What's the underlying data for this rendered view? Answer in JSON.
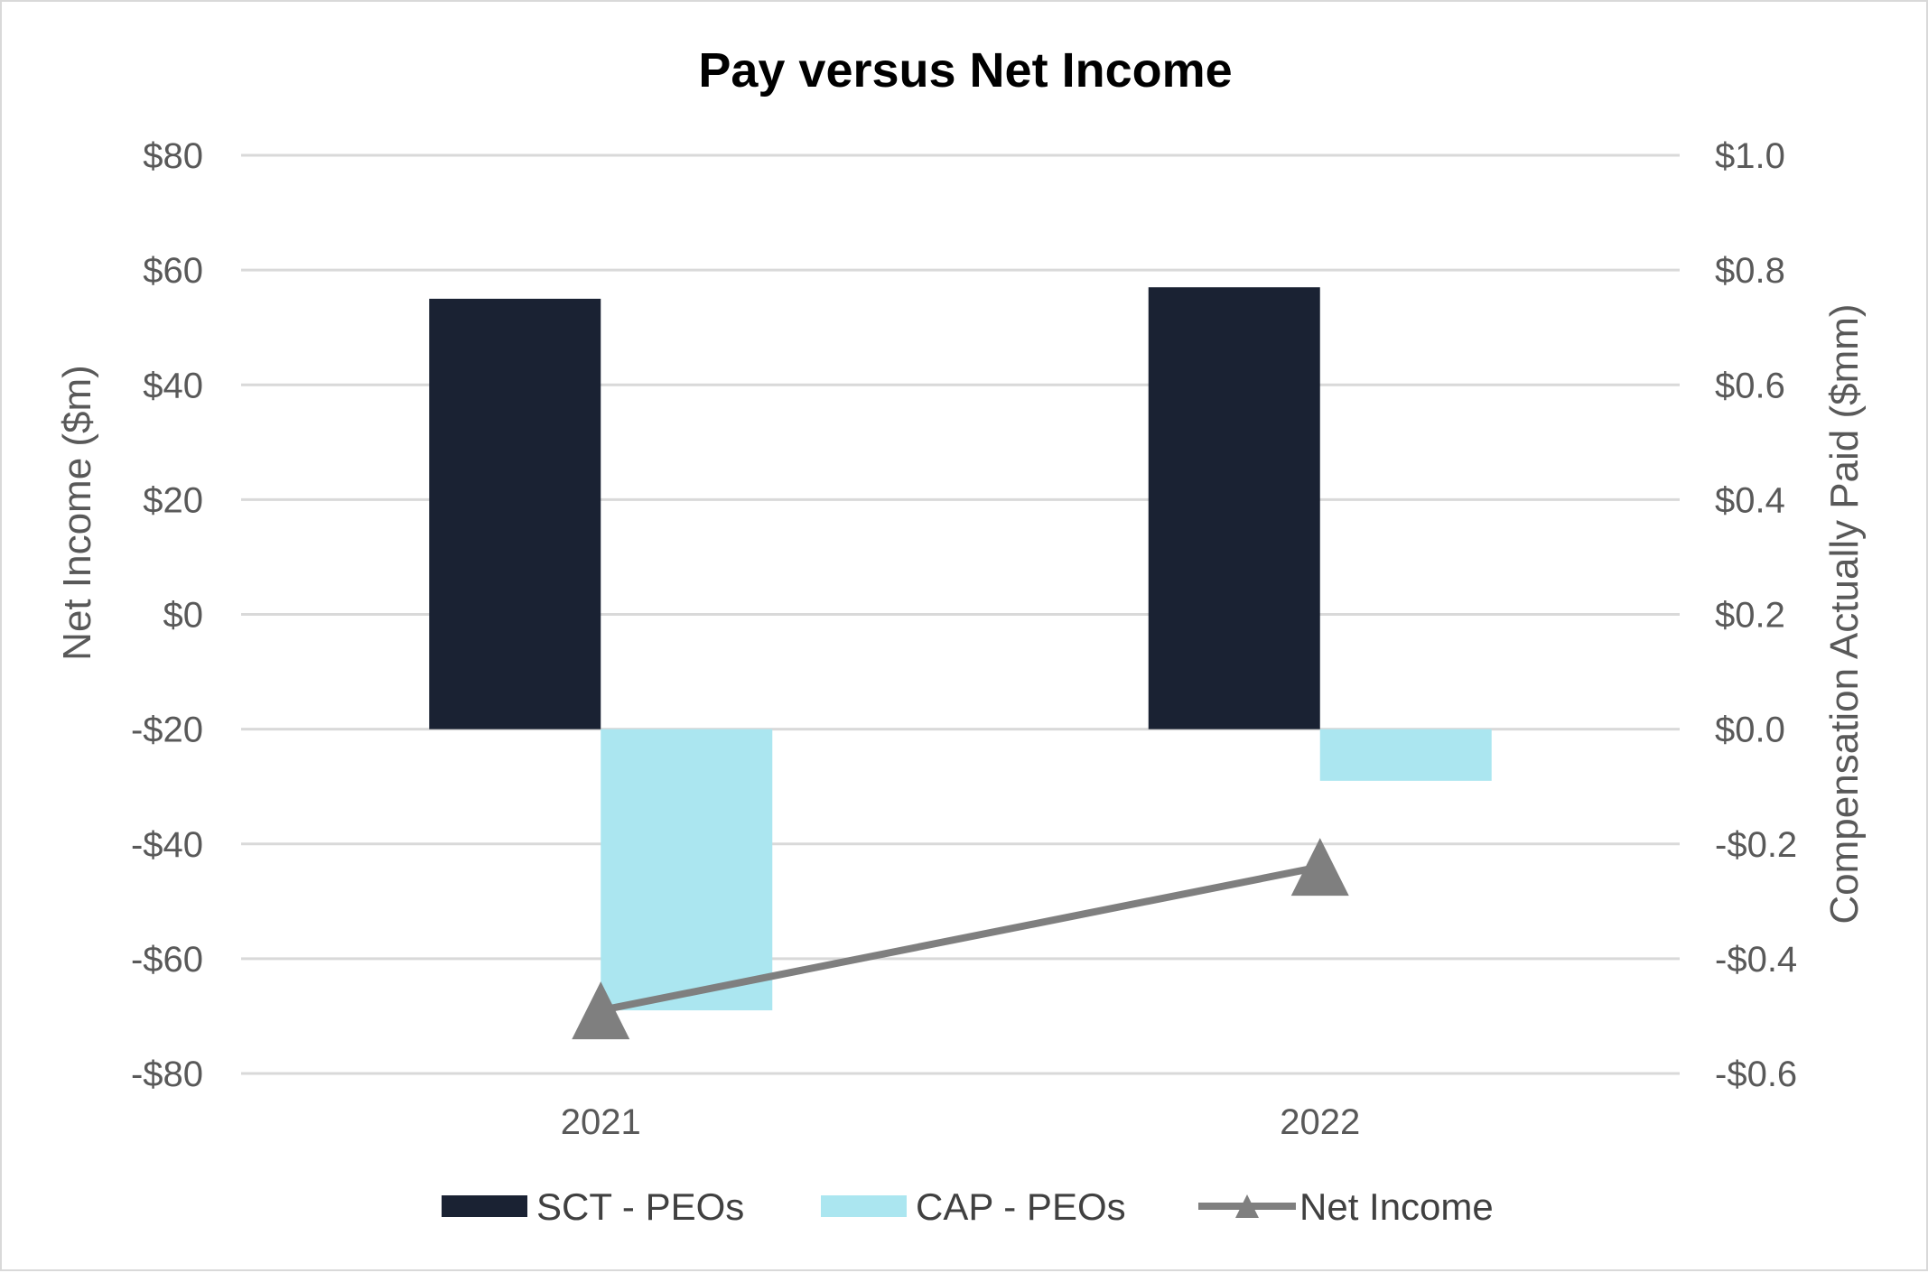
{
  "chart_data": {
    "type": "bar",
    "title": "Pay versus Net Income",
    "categories": [
      "2021",
      "2022"
    ],
    "left_axis": {
      "label": "Net Income ($m)",
      "ylim": [
        -80,
        80
      ],
      "ticks": [
        "-$80",
        "-$60",
        "-$40",
        "-$20",
        "$0",
        "$20",
        "$40",
        "$60",
        "$80"
      ],
      "tick_values": [
        -80,
        -60,
        -40,
        -20,
        0,
        20,
        40,
        60,
        80
      ]
    },
    "right_axis": {
      "label": "Compensation Actually Paid ($mm)",
      "ylim": [
        -0.6,
        1.0
      ],
      "ticks": [
        "-$0.6",
        "-$0.4",
        "-$0.2",
        "$0.0",
        "$0.2",
        "$0.4",
        "$0.6",
        "$0.8",
        "$1.0"
      ],
      "tick_values": [
        -0.6,
        -0.4,
        -0.2,
        0.0,
        0.2,
        0.4,
        0.6,
        0.8,
        1.0
      ]
    },
    "series": [
      {
        "name": "SCT - PEOs",
        "type": "bar",
        "axis": "right",
        "color": "#1a2233",
        "values": [
          0.75,
          0.77
        ]
      },
      {
        "name": "CAP - PEOs",
        "type": "bar",
        "axis": "right",
        "color": "#abe6f0",
        "values": [
          -0.49,
          -0.09
        ]
      },
      {
        "name": "Net Income",
        "type": "line",
        "axis": "left",
        "color": "#7f7f7f",
        "marker": "triangle",
        "values": [
          -69,
          -44
        ]
      }
    ],
    "grid": true,
    "legend_position": "bottom"
  }
}
